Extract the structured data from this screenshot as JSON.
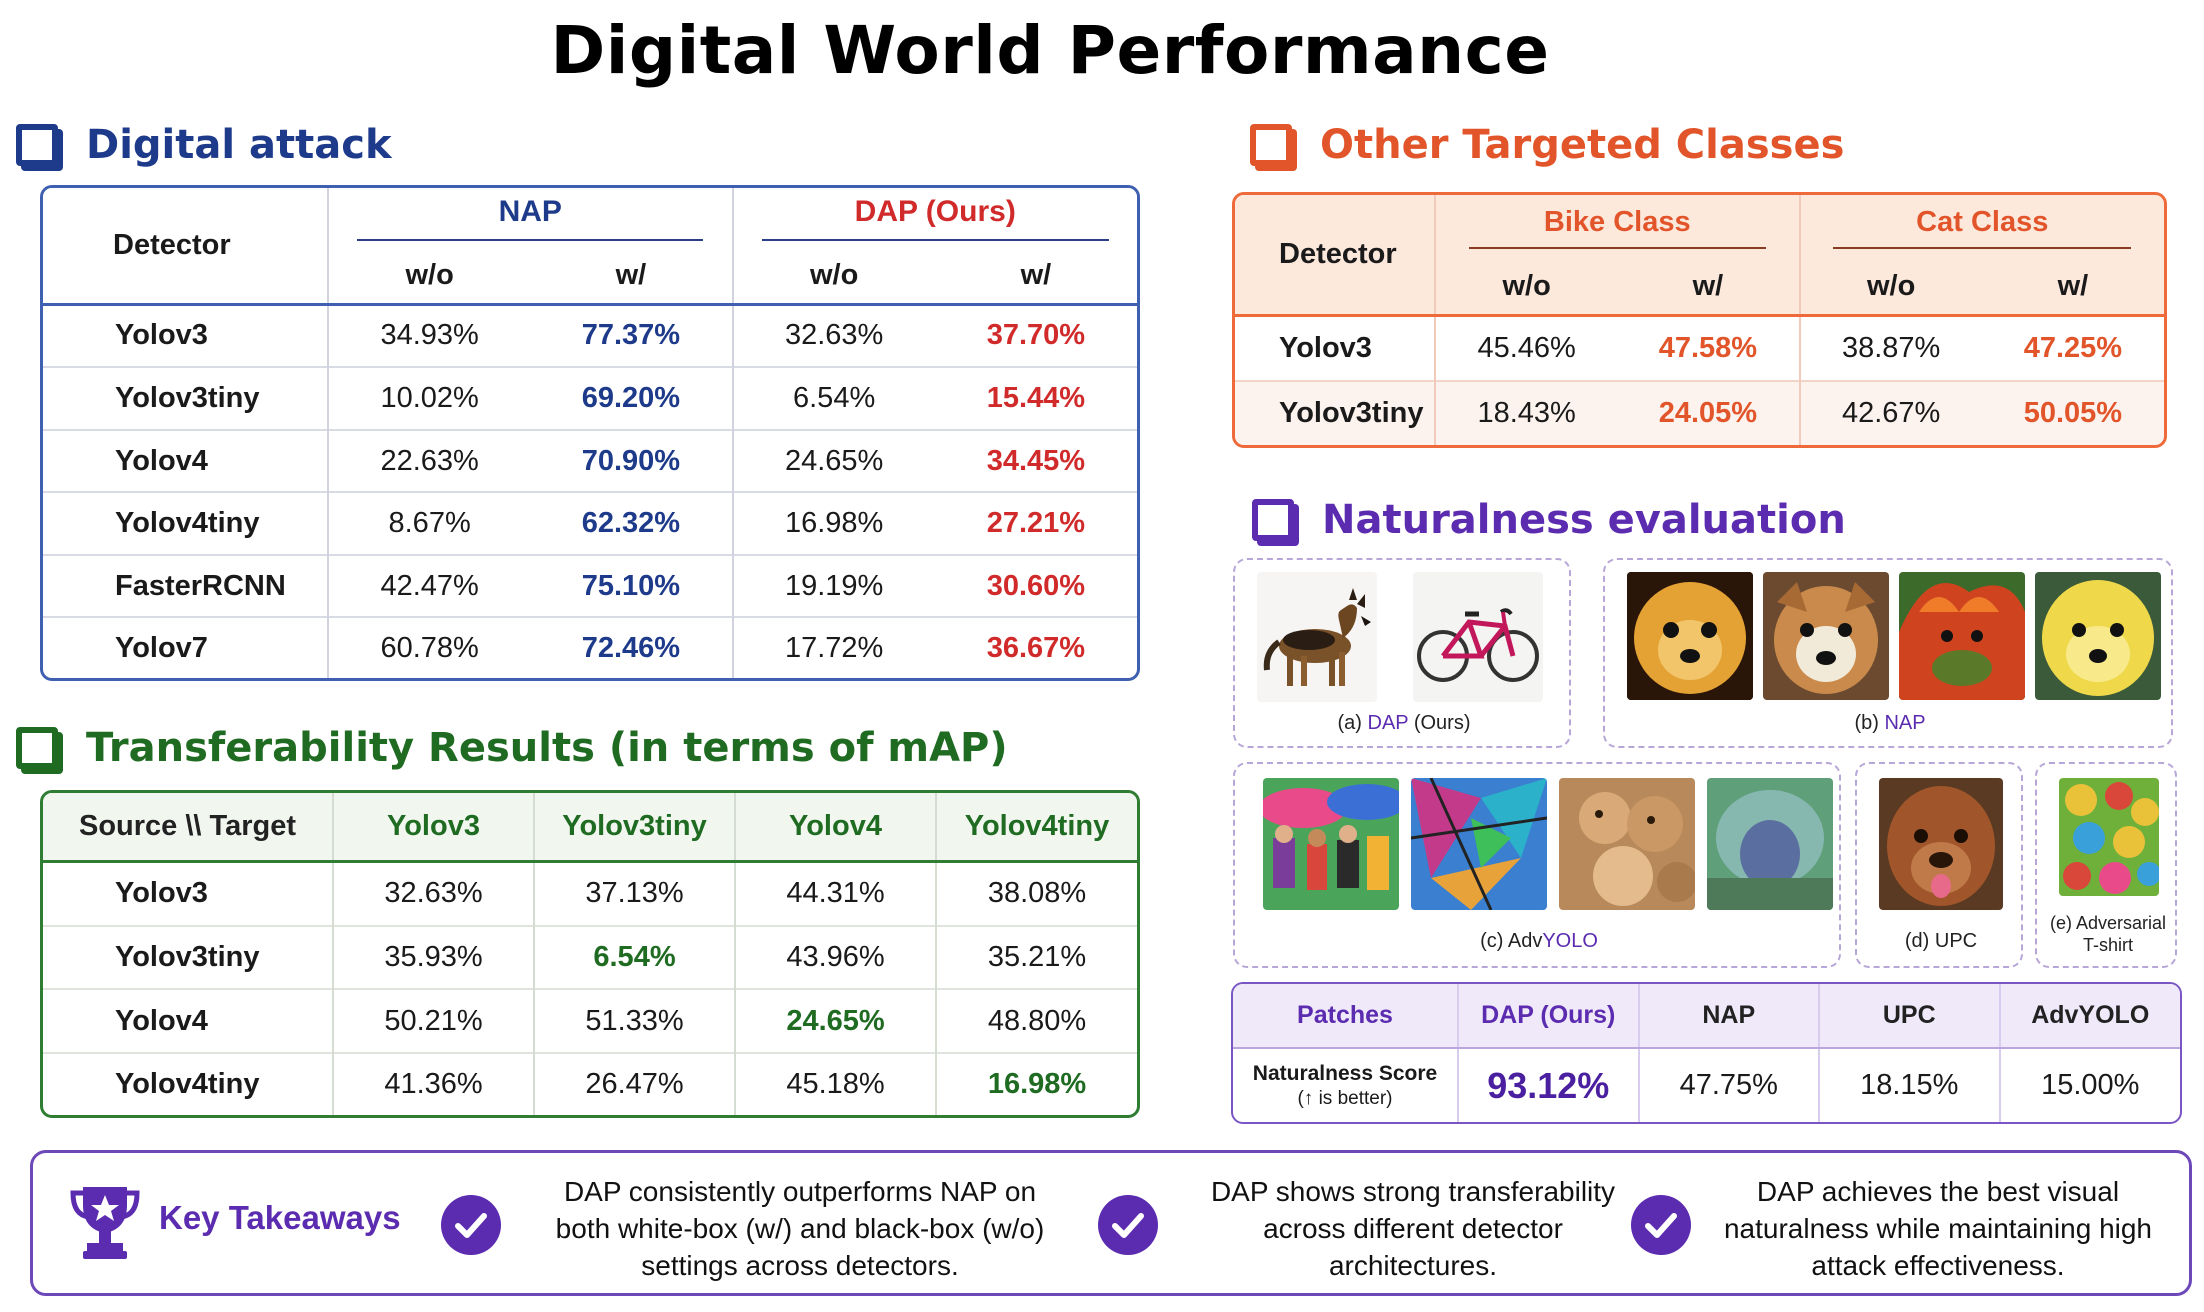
{
  "title": "Digital World Performance",
  "colors": {
    "attack": "#1e3a8a",
    "attack_red": "#d12a2a",
    "transfer": "#1f6b22",
    "other": "#e2552a",
    "natural": "#5b2bb0"
  },
  "attack": {
    "heading": "Digital attack",
    "detector_header": "Detector",
    "group_nap": "NAP",
    "group_dap": "DAP (Ours)",
    "wo": "w/o",
    "w": "w/",
    "rows": [
      {
        "detector": "Yolov3",
        "nap_wo": "34.93%",
        "nap_w": "77.37%",
        "dap_wo": "32.63%",
        "dap_w": "37.70%"
      },
      {
        "detector": "Yolov3tiny",
        "nap_wo": "10.02%",
        "nap_w": "69.20%",
        "dap_wo": "6.54%",
        "dap_w": "15.44%"
      },
      {
        "detector": "Yolov4",
        "nap_wo": "22.63%",
        "nap_w": "70.90%",
        "dap_wo": "24.65%",
        "dap_w": "34.45%"
      },
      {
        "detector": "Yolov4tiny",
        "nap_wo": "8.67%",
        "nap_w": "62.32%",
        "dap_wo": "16.98%",
        "dap_w": "27.21%"
      },
      {
        "detector": "FasterRCNN",
        "nap_wo": "42.47%",
        "nap_w": "75.10%",
        "dap_wo": "19.19%",
        "dap_w": "30.60%"
      },
      {
        "detector": "Yolov7",
        "nap_wo": "60.78%",
        "nap_w": "72.46%",
        "dap_wo": "17.72%",
        "dap_w": "36.67%"
      }
    ]
  },
  "transfer": {
    "heading": "Transferability Results (in terms of mAP)",
    "corner": "Source \\\\ Target",
    "targets": [
      "Yolov3",
      "Yolov3tiny",
      "Yolov4",
      "Yolov4tiny"
    ],
    "rows": [
      {
        "source": "Yolov3",
        "values": [
          "32.63%",
          "37.13%",
          "44.31%",
          "38.08%"
        ],
        "highlight": -1
      },
      {
        "source": "Yolov3tiny",
        "values": [
          "35.93%",
          "6.54%",
          "43.96%",
          "35.21%"
        ],
        "highlight": 1
      },
      {
        "source": "Yolov4",
        "values": [
          "50.21%",
          "51.33%",
          "24.65%",
          "48.80%"
        ],
        "highlight": 2
      },
      {
        "source": "Yolov4tiny",
        "values": [
          "41.36%",
          "26.47%",
          "45.18%",
          "16.98%"
        ],
        "highlight": 3
      }
    ]
  },
  "other": {
    "heading": "Other Targeted Classes",
    "detector_header": "Detector",
    "group_bike": "Bike Class",
    "group_cat": "Cat Class",
    "wo": "w/o",
    "w": "w/",
    "rows": [
      {
        "detector": "Yolov3",
        "bike_wo": "45.46%",
        "bike_w": "47.58%",
        "cat_wo": "38.87%",
        "cat_w": "47.25%"
      },
      {
        "detector": "Yolov3tiny",
        "bike_wo": "18.43%",
        "bike_w": "24.05%",
        "cat_wo": "42.67%",
        "cat_w": "50.05%"
      }
    ]
  },
  "natural": {
    "heading": "Naturalness evaluation",
    "cap_a_prefix": "(a) ",
    "cap_a_name": "DAP",
    "cap_a_suffix": " (Ours)",
    "cap_b_prefix": "(b) ",
    "cap_b_name": "NAP",
    "cap_c_prefix": "(c) Adv",
    "cap_c_name": "YOLO",
    "cap_d": "(d) UPC",
    "cap_e1": "(e) Adversarial",
    "cap_e2": "T-shirt"
  },
  "patches": {
    "header": [
      "Patches",
      "DAP (Ours)",
      "NAP",
      "UPC",
      "AdvYOLO"
    ],
    "row_label": "Naturalness Score",
    "row_sub": "(↑ is better)",
    "values": [
      "93.12%",
      "47.75%",
      "18.15%",
      "15.00%"
    ]
  },
  "takeaways": {
    "title": "Key Takeaways",
    "items": [
      {
        "lines": [
          "DAP consistently outperforms NAP on",
          "both white-box (w/) and black-box (w/o)",
          "settings across detectors."
        ]
      },
      {
        "lines": [
          "DAP shows strong transferability",
          "across different detector",
          "architectures."
        ]
      },
      {
        "lines": [
          "DAP achieves the best visual",
          "naturalness while maintaining high",
          "attack effectiveness."
        ]
      }
    ]
  }
}
